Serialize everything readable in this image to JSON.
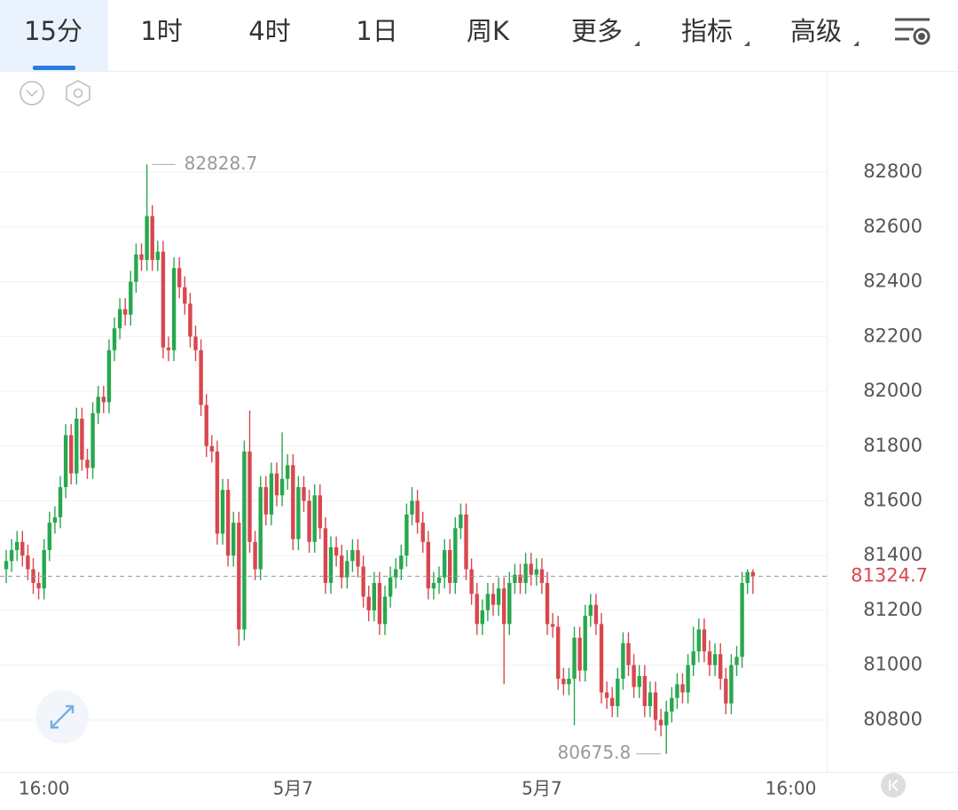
{
  "tabs": [
    "15分",
    "1时",
    "4时",
    "1日",
    "周K",
    "更多",
    "指标",
    "高级"
  ],
  "chart_data": {
    "type": "candlestick",
    "up_color": "#27a84f",
    "down_color": "#d9474e",
    "grid": true,
    "ylim": [
      80610,
      83170
    ],
    "yticks": [
      80800,
      81000,
      81200,
      81400,
      81600,
      81800,
      82000,
      82200,
      82400,
      82600,
      82800
    ],
    "categories": [
      null,
      null,
      null,
      null,
      null,
      null,
      null,
      "16:00",
      null,
      null,
      null,
      null,
      null,
      null,
      null,
      null,
      null,
      null,
      null,
      null,
      null,
      null,
      null,
      null,
      null,
      null,
      null,
      null,
      null,
      null,
      null,
      null,
      null,
      null,
      null,
      null,
      null,
      null,
      null,
      null,
      null,
      null,
      null,
      null,
      null,
      null,
      null,
      null,
      null,
      null,
      null,
      null,
      null,
      "5月7",
      null,
      null,
      null,
      null,
      null,
      null,
      null,
      null,
      null,
      null,
      null,
      null,
      null,
      null,
      null,
      null,
      null,
      null,
      null,
      null,
      null,
      null,
      null,
      null,
      null,
      null,
      null,
      null,
      null,
      null,
      null,
      null,
      null,
      null,
      null,
      null,
      null,
      null,
      null,
      null,
      null,
      null,
      null,
      null,
      null,
      "5月7",
      null,
      null,
      null,
      null,
      null,
      null,
      null,
      null,
      null,
      null,
      null,
      null,
      null,
      null,
      null,
      null,
      null,
      null,
      null,
      null,
      null,
      null,
      null,
      null,
      null,
      null,
      null,
      null,
      null,
      null,
      null,
      null,
      null,
      null,
      null,
      null,
      null,
      null,
      null,
      null,
      null,
      null,
      null,
      null,
      null,
      "16:00"
    ],
    "open": [
      81350,
      81380,
      81420,
      81450,
      81400,
      81350,
      81300,
      81280,
      81420,
      81520,
      81540,
      81650,
      81840,
      81700,
      81900,
      81750,
      81720,
      81920,
      81980,
      81960,
      82150,
      82230,
      82300,
      82280,
      82400,
      82500,
      82480,
      82640,
      82480,
      82510,
      82160,
      82150,
      82450,
      82380,
      82320,
      82200,
      82150,
      81950,
      81800,
      81780,
      81480,
      81640,
      81400,
      81520,
      81130,
      81780,
      81450,
      81350,
      81650,
      81550,
      81700,
      81620,
      81680,
      81730,
      81460,
      81650,
      81600,
      81450,
      81620,
      81500,
      81300,
      81430,
      81400,
      81320,
      81380,
      81420,
      81360,
      81250,
      81200,
      81300,
      81150,
      81250,
      81320,
      81350,
      81400,
      81550,
      81600,
      81520,
      81450,
      81280,
      81300,
      81320,
      81420,
      81300,
      81500,
      81550,
      81350,
      81260,
      81150,
      81200,
      81260,
      81220,
      81280,
      81150,
      81300,
      81330,
      81300,
      81370,
      81330,
      81350,
      81300,
      81150,
      81140,
      80950,
      80930,
      80950,
      81100,
      80980,
      81180,
      81220,
      81150,
      80900,
      80880,
      80850,
      80950,
      81080,
      81000,
      80920,
      80960,
      80850,
      80900,
      80800,
      80780,
      80830,
      80880,
      80930,
      80900,
      81000,
      81050,
      81130,
      81050,
      81000,
      81040,
      80950,
      80860,
      81000,
      81030,
      81300,
      81340,
      null,
      null,
      null,
      null,
      null,
      null,
      null
    ],
    "high": [
      81420,
      81460,
      81490,
      81490,
      81440,
      81390,
      81340,
      81460,
      81560,
      81580,
      81690,
      81880,
      81880,
      81940,
      81940,
      81790,
      81960,
      82020,
      82020,
      82190,
      82270,
      82340,
      82340,
      82440,
      82540,
      82540,
      82828.7,
      82680,
      82550,
      82550,
      82200,
      82490,
      82490,
      82420,
      82360,
      82240,
      82190,
      81990,
      81840,
      81820,
      81680,
      81680,
      81560,
      81560,
      81820,
      81930,
      81490,
      81690,
      81690,
      81740,
      81740,
      81850,
      81770,
      81770,
      81690,
      81690,
      81640,
      81660,
      81660,
      81540,
      81470,
      81470,
      81440,
      81420,
      81460,
      81460,
      81400,
      81290,
      81340,
      81340,
      81290,
      81360,
      81390,
      81440,
      81590,
      81650,
      81640,
      81560,
      81490,
      81340,
      81360,
      81460,
      81460,
      81540,
      81590,
      81590,
      81390,
      81300,
      81240,
      81300,
      81300,
      81320,
      81320,
      81340,
      81370,
      81370,
      81410,
      81410,
      81390,
      81390,
      81340,
      81190,
      81180,
      80990,
      80990,
      81140,
      81140,
      81220,
      81260,
      81260,
      81190,
      80940,
      80920,
      80990,
      81120,
      81120,
      81040,
      81000,
      81000,
      80940,
      80940,
      80840,
      80870,
      80920,
      80970,
      80970,
      81040,
      81140,
      81170,
      81170,
      81090,
      81080,
      81080,
      80990,
      81040,
      81070,
      81340,
      81350,
      81350,
      null,
      null,
      null,
      null,
      null,
      null,
      null
    ],
    "low": [
      81300,
      81340,
      81380,
      81360,
      81310,
      81260,
      81240,
      81240,
      81380,
      81480,
      81500,
      81610,
      81660,
      81660,
      81710,
      81680,
      81680,
      81880,
      81920,
      81920,
      82110,
      82190,
      82240,
      82240,
      82360,
      82440,
      82440,
      82440,
      82440,
      82120,
      82110,
      82110,
      82340,
      82280,
      82160,
      82110,
      81910,
      81760,
      81740,
      81440,
      81440,
      81360,
      81360,
      81070,
      81090,
      81410,
      81310,
      81310,
      81510,
      81510,
      81580,
      81580,
      81640,
      81420,
      81420,
      81560,
      81410,
      81410,
      81460,
      81260,
      81260,
      81360,
      81280,
      81280,
      81340,
      81320,
      81210,
      81160,
      81160,
      81110,
      81110,
      81210,
      81280,
      81310,
      81360,
      81510,
      81480,
      81410,
      81240,
      81240,
      81260,
      81280,
      81260,
      81260,
      81460,
      81310,
      81220,
      81110,
      81110,
      81160,
      81180,
      81180,
      80930,
      81110,
      81260,
      81260,
      81260,
      81290,
      81290,
      81260,
      81110,
      81100,
      80910,
      80890,
      80890,
      80780,
      80940,
      80940,
      81140,
      81110,
      80860,
      80840,
      80810,
      80810,
      80910,
      80960,
      80880,
      80880,
      80810,
      80810,
      80760,
      80740,
      80675.8,
      80790,
      80840,
      80860,
      80860,
      80960,
      81010,
      81010,
      80960,
      80960,
      80910,
      80820,
      80820,
      80960,
      80990,
      81260,
      81260,
      null,
      null,
      null,
      null,
      null,
      null,
      null
    ],
    "close": [
      81380,
      81420,
      81450,
      81400,
      81350,
      81300,
      81280,
      81420,
      81520,
      81540,
      81650,
      81840,
      81700,
      81900,
      81750,
      81720,
      81920,
      81980,
      81960,
      82150,
      82230,
      82300,
      82280,
      82400,
      82500,
      82480,
      82640,
      82480,
      82510,
      82160,
      82150,
      82450,
      82380,
      82320,
      82200,
      82150,
      81950,
      81800,
      81780,
      81480,
      81640,
      81400,
      81520,
      81130,
      81780,
      81450,
      81350,
      81650,
      81550,
      81700,
      81620,
      81680,
      81730,
      81460,
      81650,
      81600,
      81450,
      81620,
      81500,
      81300,
      81430,
      81400,
      81320,
      81380,
      81420,
      81360,
      81250,
      81200,
      81300,
      81150,
      81250,
      81320,
      81350,
      81400,
      81550,
      81600,
      81520,
      81450,
      81280,
      81300,
      81320,
      81420,
      81300,
      81500,
      81550,
      81350,
      81260,
      81150,
      81200,
      81260,
      81220,
      81280,
      81150,
      81300,
      81330,
      81300,
      81370,
      81330,
      81350,
      81300,
      81150,
      81140,
      80950,
      80930,
      80950,
      81100,
      80980,
      81180,
      81220,
      81150,
      80900,
      80880,
      80850,
      80950,
      81080,
      81000,
      80920,
      80960,
      80850,
      80900,
      80800,
      80780,
      80830,
      80880,
      80930,
      80900,
      81000,
      81050,
      81130,
      81050,
      81000,
      81040,
      80950,
      80860,
      81000,
      81030,
      81300,
      81340,
      81324.7,
      null,
      null,
      null,
      null,
      null,
      null,
      null
    ]
  }
}
